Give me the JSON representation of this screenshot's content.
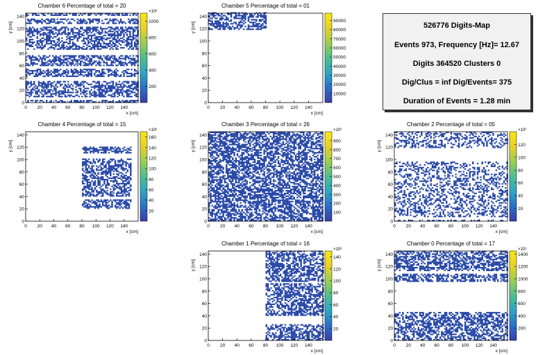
{
  "info": {
    "lines": [
      "526776 Digits-Map",
      "Events 973, Frequency [Hz]= 12.67",
      "Digits 364520 Clusters 0",
      "Dig/Clus = inf Dig/Events= 375",
      "Duration of Events = 1.28 min"
    ]
  },
  "colors": {
    "hit": "#2a4aa8",
    "palette": [
      "#3a3ea8",
      "#2a6fc9",
      "#2ea6c4",
      "#4dbf8f",
      "#9bcf52",
      "#e8d02a",
      "#f5ea14"
    ]
  },
  "chart_data": [
    {
      "type": "heatmap",
      "title": "Chamber 6 Percentage of total = 20",
      "xlabel": "x [cm]",
      "ylabel": "y [cm]",
      "xlim": [
        0,
        160
      ],
      "ylim": [
        0,
        145
      ],
      "xticks": [
        0,
        20,
        40,
        60,
        80,
        100,
        120,
        140
      ],
      "yticks": [
        0,
        20,
        40,
        60,
        80,
        100,
        120,
        140
      ],
      "z_exponent": "×10³",
      "zticks": [
        200,
        400,
        600,
        800,
        1000
      ],
      "zmax": 1100,
      "filled_regions": [
        {
          "x": [
            0,
            160
          ],
          "y": [
            0,
            145
          ]
        }
      ],
      "gaps_y": [
        [
          4,
          8
        ],
        [
          33,
          40
        ],
        [
          55,
          58
        ],
        [
          76,
          84
        ],
        [
          122,
          126
        ],
        [
          136,
          140
        ]
      ],
      "density": 0.55
    },
    {
      "type": "heatmap",
      "title": "Chamber 5 Percentage of total = 01",
      "xlabel": "x [cm]",
      "ylabel": "y [cm]",
      "xlim": [
        0,
        160
      ],
      "ylim": [
        0,
        145
      ],
      "xticks": [
        0,
        20,
        40,
        60,
        80,
        100,
        120,
        140
      ],
      "yticks": [
        0,
        20,
        40,
        60,
        80,
        100,
        120,
        140
      ],
      "z_exponent": "",
      "zticks": [
        10000,
        20000,
        30000,
        40000,
        50000,
        60000,
        70000,
        80000,
        90000
      ],
      "zmax": 98000,
      "filled_regions": [
        {
          "x": [
            0,
            80
          ],
          "y": [
            118,
            145
          ]
        }
      ],
      "gaps_y": [],
      "density": 0.55
    },
    {
      "type": "heatmap",
      "title": "Chamber 4 Percentage of total = 15",
      "xlabel": "x [cm]",
      "ylabel": "y [cm]",
      "xlim": [
        0,
        160
      ],
      "ylim": [
        0,
        145
      ],
      "xticks": [
        0,
        20,
        40,
        60,
        80,
        100,
        120,
        140
      ],
      "yticks": [
        0,
        20,
        40,
        60,
        80,
        100,
        120,
        140
      ],
      "z_exponent": "×10³",
      "zticks": [
        20,
        40,
        60,
        80,
        100,
        120,
        140,
        160
      ],
      "zmax": 170,
      "filled_regions": [
        {
          "x": [
            80,
            150
          ],
          "y": [
            110,
            120
          ]
        },
        {
          "x": [
            80,
            150
          ],
          "y": [
            40,
            100
          ]
        },
        {
          "x": [
            80,
            150
          ],
          "y": [
            20,
            35
          ]
        }
      ],
      "gaps_y": [],
      "density": 0.55
    },
    {
      "type": "heatmap",
      "title": "Chamber 3 Percentage of total = 26",
      "xlabel": "x [cm]",
      "ylabel": "y [cm]",
      "xlim": [
        0,
        160
      ],
      "ylim": [
        0,
        145
      ],
      "xticks": [
        0,
        20,
        40,
        60,
        80,
        100,
        120,
        140
      ],
      "yticks": [
        0,
        20,
        40,
        60,
        80,
        100,
        120,
        140
      ],
      "z_exponent": "×10³",
      "zticks": [
        100,
        200,
        300,
        400,
        500,
        600,
        700,
        800,
        900
      ],
      "zmax": 1000,
      "filled_regions": [
        {
          "x": [
            0,
            160
          ],
          "y": [
            0,
            145
          ]
        }
      ],
      "gaps_y": [],
      "density": 0.6
    },
    {
      "type": "heatmap",
      "title": "Chamber 2 Percentage of total = 05",
      "xlabel": "x [cm]",
      "ylabel": "y [cm]",
      "xlim": [
        0,
        160
      ],
      "ylim": [
        0,
        145
      ],
      "xticks": [
        0,
        20,
        40,
        60,
        80,
        100,
        120,
        140
      ],
      "yticks": [
        0,
        20,
        40,
        60,
        80,
        100,
        120,
        140
      ],
      "z_exponent": "×10³",
      "zticks": [
        20,
        40,
        60,
        80,
        100,
        120
      ],
      "zmax": 140,
      "filled_regions": [
        {
          "x": [
            0,
            160
          ],
          "y": [
            0,
            145
          ]
        }
      ],
      "gaps_y": [
        [
          95,
          118
        ],
        [
          2,
          6
        ]
      ],
      "density": 0.35
    },
    {
      "type": "heatmap",
      "title": "Chamber 1 Percentage of total = 16",
      "xlabel": "x [cm]",
      "ylabel": "y [cm]",
      "xlim": [
        0,
        160
      ],
      "ylim": [
        0,
        145
      ],
      "xticks": [
        0,
        20,
        40,
        60,
        80,
        100,
        120,
        140
      ],
      "yticks": [
        0,
        20,
        40,
        60,
        80,
        100,
        120,
        140
      ],
      "z_exponent": "×10³",
      "zticks": [
        20,
        40,
        60,
        80,
        100,
        120,
        140
      ],
      "zmax": 150,
      "filled_regions": [
        {
          "x": [
            80,
            160
          ],
          "y": [
            95,
            145
          ]
        },
        {
          "x": [
            80,
            160
          ],
          "y": [
            40,
            92
          ]
        },
        {
          "x": [
            80,
            160
          ],
          "y": [
            0,
            25
          ]
        }
      ],
      "gaps_y": [],
      "density": 0.55
    },
    {
      "type": "heatmap",
      "title": "Chamber 0 Percentage of total = 17",
      "xlabel": "x [cm]",
      "ylabel": "y [cm]",
      "xlim": [
        0,
        160
      ],
      "ylim": [
        0,
        145
      ],
      "xticks": [
        0,
        20,
        40,
        60,
        80,
        100,
        120,
        140
      ],
      "yticks": [
        0,
        20,
        40,
        60,
        80,
        100,
        120,
        140
      ],
      "z_exponent": "×10³",
      "zticks": [
        200,
        400,
        600,
        800,
        1000,
        1200,
        1400
      ],
      "zmax": 1450,
      "filled_regions": [
        {
          "x": [
            0,
            160
          ],
          "y": [
            95,
            145
          ]
        },
        {
          "x": [
            0,
            160
          ],
          "y": [
            0,
            45
          ]
        }
      ],
      "gaps_y": [
        [
          108,
          112
        ]
      ],
      "density": 0.55
    }
  ]
}
